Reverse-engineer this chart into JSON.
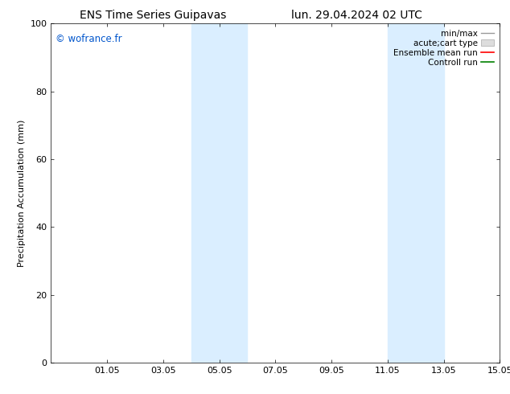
{
  "title_left": "ENS Time Series Guipavas",
  "title_right": "lun. 29.04.2024 02 UTC",
  "ylabel": "Precipitation Accumulation (mm)",
  "watermark": "© wofrance.fr",
  "watermark_color": "#0055cc",
  "ylim": [
    0,
    100
  ],
  "yticks": [
    0,
    20,
    40,
    60,
    80,
    100
  ],
  "xtick_labels": [
    "01.05",
    "03.05",
    "05.05",
    "07.05",
    "09.05",
    "11.05",
    "13.05",
    "15.05"
  ],
  "shade_color": "#daeeff",
  "bg_color": "#ffffff",
  "title_fontsize": 10,
  "axis_fontsize": 8,
  "tick_fontsize": 8,
  "legend_fontsize": 7.5
}
